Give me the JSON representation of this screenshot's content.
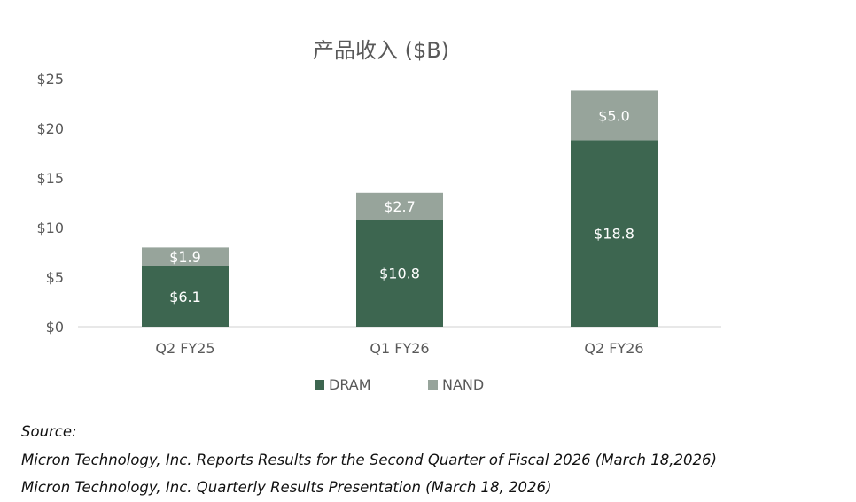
{
  "chart_data": {
    "type": "bar",
    "stacked": true,
    "title": "产品收入 ($B)",
    "xlabel": "",
    "ylabel": "",
    "categories": [
      "Q2 FY25",
      "Q1 FY26",
      "Q2 FY26"
    ],
    "series": [
      {
        "name": "DRAM",
        "values": [
          6.1,
          10.8,
          18.8
        ],
        "color": "#3d6650",
        "labels": [
          "$6.1",
          "$10.8",
          "$18.8"
        ]
      },
      {
        "name": "NAND",
        "values": [
          1.9,
          2.7,
          5.0
        ],
        "color": "#97a49b",
        "labels": [
          "$1.9",
          "$2.7",
          "$5.0"
        ]
      }
    ],
    "ylim": [
      0,
      25
    ],
    "yticks": [
      0,
      5,
      10,
      15,
      20,
      25
    ],
    "ytick_labels": [
      "$0",
      "$5",
      "$10",
      "$15",
      "$20",
      "$25"
    ],
    "grid": false,
    "legend_position": "bottom"
  },
  "source": {
    "heading": "Source:",
    "lines": [
      "Micron Technology, Inc. Reports Results for the Second Quarter of Fiscal 2026 (March 18,2026)",
      "Micron Technology, Inc. Quarterly Results Presentation (March 18, 2026)"
    ]
  }
}
